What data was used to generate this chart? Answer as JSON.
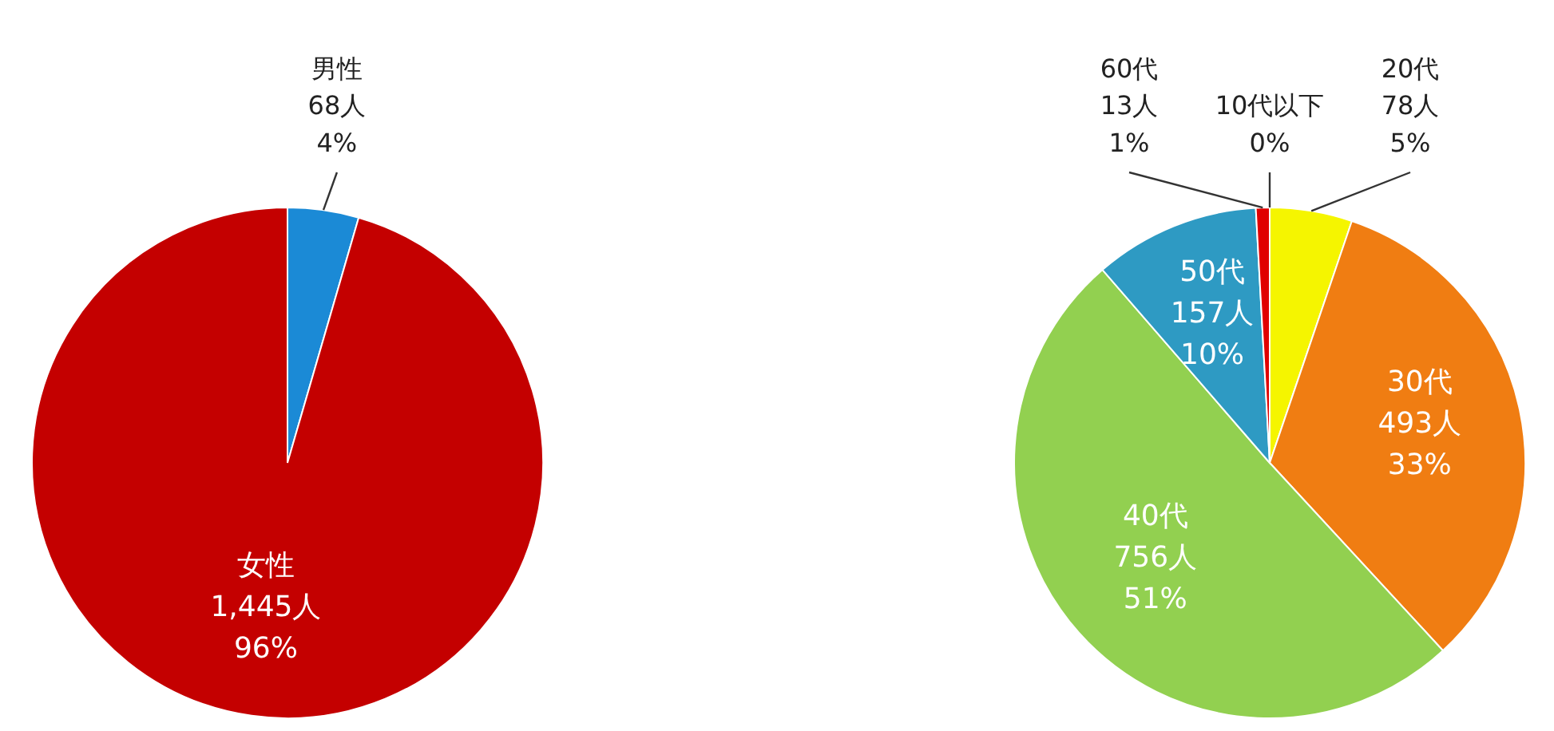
{
  "chart_data": [
    {
      "type": "pie",
      "categories": [
        "男性",
        "女性"
      ],
      "values": [
        68,
        1445
      ],
      "colors": [
        "#1b8ad6",
        "#c40000"
      ],
      "value_labels": [
        "68人\n4%",
        "1,445人\n96%"
      ]
    },
    {
      "type": "pie",
      "categories": [
        "10代以下",
        "20代",
        "30代",
        "40代",
        "50代",
        "60代"
      ],
      "values": [
        0,
        78,
        493,
        756,
        157,
        13
      ],
      "colors": [
        "#c00000",
        "#f5f500",
        "#f07d12",
        "#92d050",
        "#2e9ac3",
        "#e00000"
      ],
      "value_labels": [
        "0%",
        "78人\n5%",
        "493人\n33%",
        "756人\n51%",
        "157人\n10%",
        "13人\n1%"
      ]
    }
  ]
}
